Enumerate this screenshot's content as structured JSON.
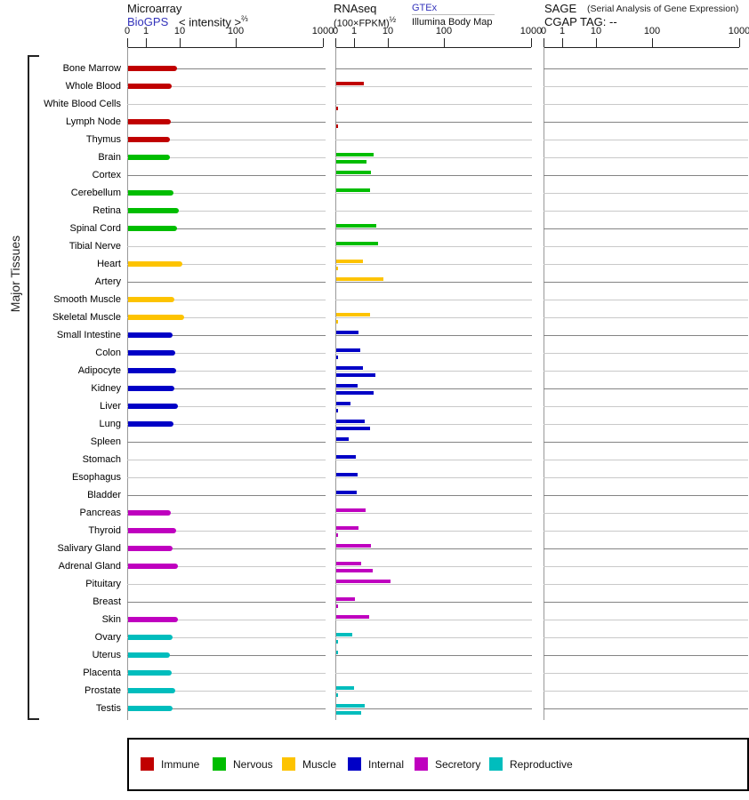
{
  "header": {
    "microarray": {
      "title": "Microarray",
      "link": "BioGPS",
      "scale": "< intensity >",
      "scale_exp": "⅔"
    },
    "rnaseq": {
      "title": "RNAseq",
      "scale": "(100×FPKM)",
      "scale_exp": "½",
      "link": "GTEx",
      "sublabel": "Illumina Body Map"
    },
    "sage": {
      "title": "SAGE",
      "subtitle": "(Serial Analysis of Gene Expression)",
      "tag_label": "CGAP TAG:",
      "tag_value": "--"
    }
  },
  "axis_ticks": [
    "0",
    "1",
    "10",
    "100",
    "1000"
  ],
  "side_label": "Major Tissues",
  "groups": {
    "immune": "#c00000",
    "nervous": "#00bd00",
    "muscle": "#fdc300",
    "internal": "#0000c6",
    "secretory": "#bf00bf",
    "reproductive": "#00bdbd"
  },
  "legend": [
    {
      "label": "Immune",
      "group": "immune"
    },
    {
      "label": "Nervous",
      "group": "nervous"
    },
    {
      "label": "Muscle",
      "group": "muscle"
    },
    {
      "label": "Internal",
      "group": "internal"
    },
    {
      "label": "Secretory",
      "group": "secretory"
    },
    {
      "label": "Reproductive",
      "group": "reproductive"
    }
  ],
  "chart_data": {
    "type": "bar",
    "orientation": "horizontal",
    "x_scale": "compressed log, ticks at 0 / 1 / 10 / 100 / 1000",
    "panels": [
      "Microarray BioGPS intensity^(2/3)",
      "RNAseq GTEx (100×FPKM)^(1/2)",
      "RNAseq Illumina Body Map",
      "SAGE: no data (CGAP TAG: --)"
    ],
    "tissues": [
      {
        "name": "Bone Marrow",
        "group": "immune",
        "microarray": 7.7,
        "rnaseq_gtex": null,
        "rnaseq_illumina": null
      },
      {
        "name": "Whole Blood",
        "group": "immune",
        "microarray": 5.6,
        "rnaseq_gtex": 1.8,
        "rnaseq_illumina": null
      },
      {
        "name": "White Blood Cells",
        "group": "immune",
        "microarray": null,
        "rnaseq_gtex": null,
        "rnaseq_illumina": 0.1
      },
      {
        "name": "Lymph Node",
        "group": "immune",
        "microarray": 5.2,
        "rnaseq_gtex": null,
        "rnaseq_illumina": 0.1
      },
      {
        "name": "Thymus",
        "group": "immune",
        "microarray": 4.9,
        "rnaseq_gtex": null,
        "rnaseq_illumina": null
      },
      {
        "name": "Brain",
        "group": "nervous",
        "microarray": 4.9,
        "rnaseq_gtex": 3.6,
        "rnaseq_illumina": 2.2
      },
      {
        "name": "Cortex",
        "group": "nervous",
        "microarray": null,
        "rnaseq_gtex": 3.0,
        "rnaseq_illumina": null
      },
      {
        "name": "Cerebellum",
        "group": "nervous",
        "microarray": 6.3,
        "rnaseq_gtex": 2.8,
        "rnaseq_illumina": null
      },
      {
        "name": "Retina",
        "group": "nervous",
        "microarray": 8.7,
        "rnaseq_gtex": null,
        "rnaseq_illumina": null
      },
      {
        "name": "Spinal Cord",
        "group": "nervous",
        "microarray": 8.0,
        "rnaseq_gtex": 4.3,
        "rnaseq_illumina": null
      },
      {
        "name": "Tibial Nerve",
        "group": "nervous",
        "microarray": null,
        "rnaseq_gtex": 4.7,
        "rnaseq_illumina": null
      },
      {
        "name": "Heart",
        "group": "muscle",
        "microarray": 10.8,
        "rnaseq_gtex": 1.7,
        "rnaseq_illumina": 0.1
      },
      {
        "name": "Artery",
        "group": "muscle",
        "microarray": null,
        "rnaseq_gtex": 6.8,
        "rnaseq_illumina": null
      },
      {
        "name": "Smooth Muscle",
        "group": "muscle",
        "microarray": 6.5,
        "rnaseq_gtex": null,
        "rnaseq_illumina": null
      },
      {
        "name": "Skeletal Muscle",
        "group": "muscle",
        "microarray": 11.6,
        "rnaseq_gtex": 2.8,
        "rnaseq_illumina": 0.1
      },
      {
        "name": "Small Intestine",
        "group": "internal",
        "microarray": 5.7,
        "rnaseq_gtex": 1.3,
        "rnaseq_illumina": null
      },
      {
        "name": "Colon",
        "group": "internal",
        "microarray": 6.9,
        "rnaseq_gtex": 1.4,
        "rnaseq_illumina": 0.05
      },
      {
        "name": "Adipocyte",
        "group": "internal",
        "microarray": 7.5,
        "rnaseq_gtex": 1.7,
        "rnaseq_illumina": 4.0
      },
      {
        "name": "Kidney",
        "group": "internal",
        "microarray": 6.5,
        "rnaseq_gtex": 1.2,
        "rnaseq_illumina": 3.5
      },
      {
        "name": "Liver",
        "group": "internal",
        "microarray": 8.5,
        "rnaseq_gtex": 0.75,
        "rnaseq_illumina": 0.05
      },
      {
        "name": "Lung",
        "group": "internal",
        "microarray": 6.3,
        "rnaseq_gtex": 2.0,
        "rnaseq_illumina": 2.8
      },
      {
        "name": "Spleen",
        "group": "internal",
        "microarray": null,
        "rnaseq_gtex": 0.65,
        "rnaseq_illumina": null
      },
      {
        "name": "Stomach",
        "group": "internal",
        "microarray": null,
        "rnaseq_gtex": 1.05,
        "rnaseq_illumina": null
      },
      {
        "name": "Esophagus",
        "group": "internal",
        "microarray": null,
        "rnaseq_gtex": 1.2,
        "rnaseq_illumina": null
      },
      {
        "name": "Bladder",
        "group": "internal",
        "microarray": null,
        "rnaseq_gtex": 1.15,
        "rnaseq_illumina": null
      },
      {
        "name": "Pancreas",
        "group": "secretory",
        "microarray": 5.0,
        "rnaseq_gtex": 2.1,
        "rnaseq_illumina": null
      },
      {
        "name": "Thyroid",
        "group": "secretory",
        "microarray": 7.2,
        "rnaseq_gtex": 1.3,
        "rnaseq_illumina": 0.05
      },
      {
        "name": "Salivary Gland",
        "group": "secretory",
        "microarray": 5.9,
        "rnaseq_gtex": 3.0,
        "rnaseq_illumina": null
      },
      {
        "name": "Adrenal Gland",
        "group": "secretory",
        "microarray": 8.5,
        "rnaseq_gtex": 1.55,
        "rnaseq_illumina": 3.4
      },
      {
        "name": "Pituitary",
        "group": "secretory",
        "microarray": null,
        "rnaseq_gtex": 10.6,
        "rnaseq_illumina": null
      },
      {
        "name": "Breast",
        "group": "secretory",
        "microarray": null,
        "rnaseq_gtex": 1.0,
        "rnaseq_illumina": 0.05
      },
      {
        "name": "Skin",
        "group": "secretory",
        "microarray": 8.4,
        "rnaseq_gtex": 2.6,
        "rnaseq_illumina": null
      },
      {
        "name": "Ovary",
        "group": "reproductive",
        "microarray": 5.9,
        "rnaseq_gtex": 0.85,
        "rnaseq_illumina": 0.05
      },
      {
        "name": "Uterus",
        "group": "reproductive",
        "microarray": 4.8,
        "rnaseq_gtex": 0.1,
        "rnaseq_illumina": null
      },
      {
        "name": "Placenta",
        "group": "reproductive",
        "microarray": 5.3,
        "rnaseq_gtex": null,
        "rnaseq_illumina": null
      },
      {
        "name": "Prostate",
        "group": "reproductive",
        "microarray": 6.9,
        "rnaseq_gtex": 0.95,
        "rnaseq_illumina": 0.05
      },
      {
        "name": "Testis",
        "group": "reproductive",
        "microarray": 5.7,
        "rnaseq_gtex": 1.9,
        "rnaseq_illumina": 1.5
      }
    ]
  }
}
